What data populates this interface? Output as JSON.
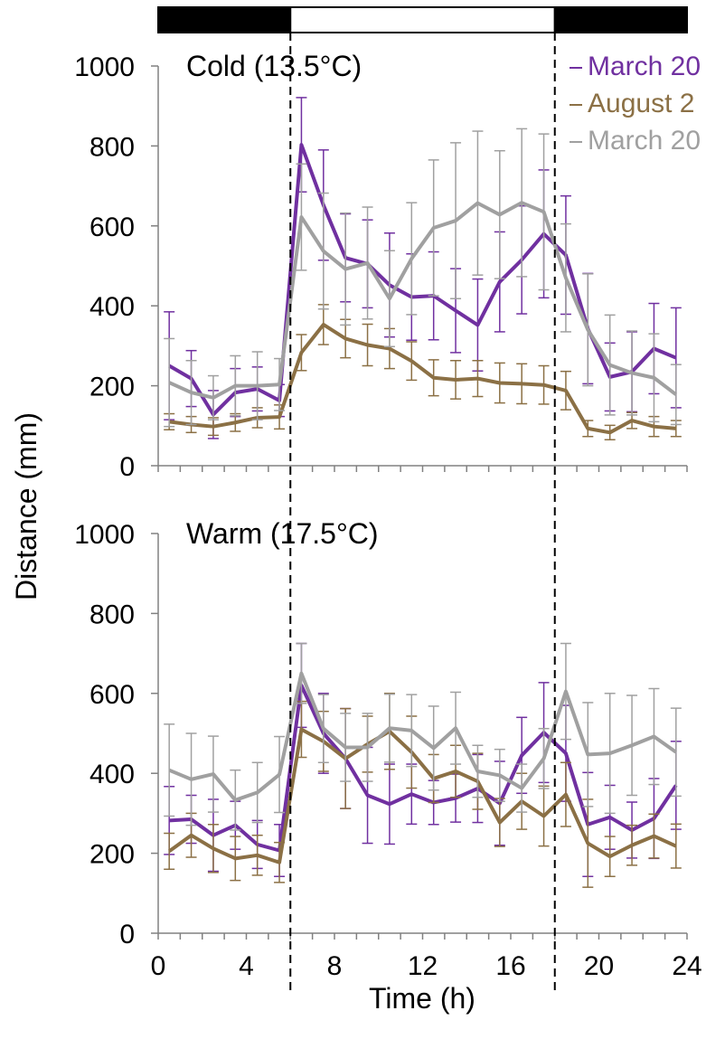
{
  "chart_data": {
    "type": "line",
    "ylabel": "Distance (mm)",
    "xlabel": "Time (h)",
    "x_ticks": [
      0,
      4,
      8,
      12,
      16,
      20,
      24
    ],
    "y_ticks": [
      0,
      200,
      400,
      600,
      800,
      1000
    ],
    "xlim": [
      0,
      24
    ],
    "ylim": [
      0,
      1000
    ],
    "light_phases": [
      {
        "start": 0,
        "end": 6,
        "state": "dark"
      },
      {
        "start": 6,
        "end": 18,
        "state": "light"
      },
      {
        "start": 18,
        "end": 24,
        "state": "dark"
      }
    ],
    "transitions": [
      6,
      18
    ],
    "x": [
      0.5,
      1.5,
      2.5,
      3.5,
      4.5,
      5.5,
      6.5,
      7.5,
      8.5,
      9.5,
      10.5,
      11.5,
      12.5,
      13.5,
      14.5,
      15.5,
      16.5,
      17.5,
      18.5,
      19.5,
      20.5,
      21.5,
      22.5,
      23.5
    ],
    "legend_labels": [
      "March 20",
      "August 2",
      "March 20"
    ],
    "panels": [
      {
        "title": "Cold (13.5°C)",
        "series": [
          {
            "color": "#7030a0",
            "values": [
              250,
              218,
              128,
              183,
              192,
              163,
              803,
              652,
              520,
              505,
              452,
              422,
              425,
              388,
              352,
              460,
              515,
              580,
              527,
              343,
              222,
              235,
              293,
              270
            ],
            "errors": [
              135,
              70,
              60,
              60,
              55,
              40,
              118,
              138,
              110,
              110,
              130,
              108,
              110,
              105,
              115,
              125,
              135,
              160,
              148,
              138,
              85,
              100,
              113,
              125
            ]
          },
          {
            "color": "#8b7045",
            "values": [
              110,
              103,
              98,
              108,
              120,
              122,
              283,
              353,
              318,
              302,
              293,
              262,
              220,
              215,
              218,
              207,
              205,
              202,
              188,
              93,
              83,
              113,
              98,
              93
            ],
            "errors": [
              20,
              20,
              22,
              22,
              25,
              30,
              45,
              50,
              48,
              52,
              50,
              48,
              45,
              48,
              45,
              50,
              50,
              48,
              48,
              20,
              18,
              20,
              25,
              20
            ]
          },
          {
            "color": "#a0a0a0",
            "values": [
              208,
              183,
              170,
              200,
              200,
              203,
              622,
              537,
              492,
              507,
              418,
              518,
              595,
              613,
              657,
              628,
              658,
              635,
              470,
              340,
              252,
              232,
              220,
              178
            ],
            "errors": [
              110,
              80,
              55,
              75,
              85,
              65,
              133,
              145,
              140,
              140,
              120,
              140,
              170,
              195,
              180,
              160,
              185,
              195,
              135,
              140,
              125,
              105,
              110,
              75
            ]
          }
        ]
      },
      {
        "title": "Warm (17.5°C)",
        "series": [
          {
            "color": "#7030a0",
            "values": [
              282,
              285,
              245,
              270,
              222,
              207,
              620,
              500,
              437,
              345,
              323,
              348,
              327,
              338,
              362,
              325,
              445,
              502,
              450,
              272,
              290,
              258,
              287,
              370
            ],
            "errors": [
              85,
              60,
              90,
              60,
              60,
              65,
              105,
              100,
              125,
              120,
              100,
              75,
              55,
              60,
              85,
              105,
              95,
              125,
              120,
              130,
              80,
              70,
              100,
              110
            ]
          },
          {
            "color": "#8b7045",
            "values": [
              205,
              245,
              212,
              187,
              195,
              177,
              510,
              480,
              437,
              473,
              505,
              453,
              387,
              405,
              380,
              277,
              330,
              293,
              347,
              225,
              192,
              220,
              243,
              218
            ],
            "errors": [
              45,
              55,
              60,
              55,
              50,
              50,
              70,
              75,
              125,
              70,
              95,
              90,
              60,
              65,
              70,
              60,
              70,
              75,
              80,
              110,
              50,
              50,
              55,
              55
            ]
          },
          {
            "color": "#a0a0a0",
            "values": [
              408,
              385,
              398,
              333,
              352,
              397,
              650,
              512,
              465,
              465,
              513,
              507,
              463,
              513,
              405,
              395,
              363,
              437,
              605,
              447,
              450,
              470,
              492,
              453
            ],
            "errors": [
              115,
              115,
              95,
              75,
              75,
              95,
              75,
              85,
              85,
              85,
              85,
              90,
              105,
              90,
              65,
              65,
              60,
              75,
              120,
              130,
              150,
              125,
              120,
              110
            ]
          }
        ]
      }
    ]
  }
}
